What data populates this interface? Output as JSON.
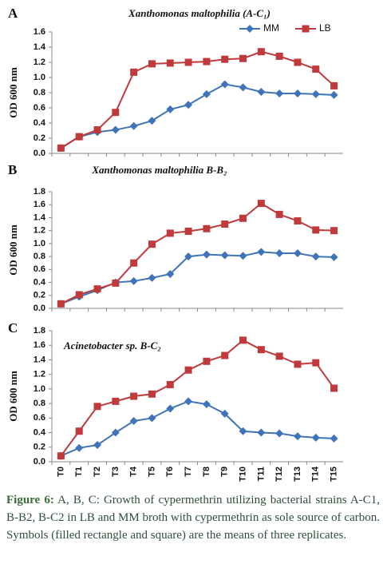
{
  "chart_data": [
    {
      "type": "line",
      "panel": "A",
      "title": "Xanthomonas maltophilia (A-C₁)",
      "y_label": "OD 600 nm",
      "categories": [
        null,
        null,
        null,
        null,
        null,
        null,
        null,
        null,
        null,
        null,
        null,
        null,
        null,
        null,
        null,
        null
      ],
      "series": [
        {
          "name": "MM",
          "color": "#3f74b8",
          "marker": "diamond",
          "values": [
            0.07,
            0.22,
            0.28,
            0.31,
            0.36,
            0.43,
            0.58,
            0.64,
            0.78,
            0.91,
            0.87,
            0.81,
            0.79,
            0.79,
            0.78,
            0.77
          ]
        },
        {
          "name": "LB",
          "color": "#c0393b",
          "marker": "square",
          "values": [
            0.07,
            0.22,
            0.31,
            0.54,
            1.07,
            1.18,
            1.19,
            1.2,
            1.21,
            1.24,
            1.25,
            1.34,
            1.28,
            1.2,
            1.11,
            0.89
          ]
        }
      ],
      "ylim": [
        0,
        1.6
      ],
      "yticks": [
        {
          "value": 0,
          "label": "0.0"
        },
        {
          "value": 0.2,
          "label": "0.2"
        },
        {
          "value": 0.4,
          "label": "0.4"
        },
        {
          "value": 0.6,
          "label": "0.6"
        },
        {
          "value": 0.8,
          "label": "0.8"
        },
        {
          "value": 1,
          "label": "1.0"
        },
        {
          "value": 1.2,
          "label": "1.2"
        },
        {
          "value": 1.4,
          "label": "1.4"
        },
        {
          "value": 1.6,
          "label": "1.6"
        }
      ],
      "legend": "upper right"
    },
    {
      "type": "line",
      "panel": "B",
      "title": "Xanthomonas maltophilia B-B₂",
      "y_label": "OD 600 nm",
      "categories": [
        null,
        null,
        null,
        null,
        null,
        null,
        null,
        null,
        null,
        null,
        null,
        null,
        null,
        null,
        null,
        null
      ],
      "series": [
        {
          "color": "#3f74b8",
          "marker": "diamond",
          "values": [
            0.07,
            0.18,
            0.28,
            0.4,
            0.42,
            0.47,
            0.53,
            0.8,
            0.83,
            0.82,
            0.81,
            0.87,
            0.85,
            0.85,
            0.8,
            0.79
          ]
        },
        {
          "color": "#c0393b",
          "marker": "square",
          "values": [
            0.07,
            0.21,
            0.3,
            0.39,
            0.7,
            0.99,
            1.16,
            1.19,
            1.23,
            1.3,
            1.39,
            1.62,
            1.45,
            1.35,
            1.21,
            1.2
          ]
        }
      ],
      "ylim": [
        0,
        1.8
      ],
      "yticks": [
        {
          "value": 0,
          "label": "0.0"
        },
        {
          "value": 0.2,
          "label": "0.2"
        },
        {
          "value": 0.4,
          "label": "0.4"
        },
        {
          "value": 0.6,
          "label": "0.6"
        },
        {
          "value": 0.8,
          "label": "0.8"
        },
        {
          "value": 1,
          "label": "1.0"
        },
        {
          "value": 1.2,
          "label": "1.2"
        },
        {
          "value": 1.4,
          "label": "1.4"
        },
        {
          "value": 1.6,
          "label": "1.6"
        },
        {
          "value": 1.8,
          "label": "1.8"
        }
      ]
    },
    {
      "type": "line",
      "panel": "C",
      "title": "Acinetobacter sp. B-C₂",
      "y_label": "OD 600 nm",
      "categories": [
        "T0",
        "T1",
        "T2",
        "T3",
        "T4",
        "T5",
        "T6",
        "T7",
        "T8",
        "T9",
        "T10",
        "T11",
        "T12",
        "T13",
        "T14",
        "T15"
      ],
      "series": [
        {
          "color": "#3f74b8",
          "marker": "diamond",
          "values": [
            0.08,
            0.19,
            0.23,
            0.4,
            0.56,
            0.6,
            0.73,
            0.83,
            0.79,
            0.66,
            0.42,
            0.4,
            0.39,
            0.35,
            0.33,
            0.32
          ]
        },
        {
          "color": "#c0393b",
          "marker": "square",
          "values": [
            0.08,
            0.42,
            0.76,
            0.83,
            0.9,
            0.93,
            1.06,
            1.26,
            1.38,
            1.46,
            1.67,
            1.54,
            1.45,
            1.34,
            1.36,
            1.01
          ]
        }
      ],
      "ylim": [
        0,
        1.8
      ],
      "yticks": [
        {
          "value": 0,
          "label": "0.0"
        },
        {
          "value": 0.2,
          "label": "0.2"
        },
        {
          "value": 0.4,
          "label": "0.4"
        },
        {
          "value": 0.6,
          "label": "0.6"
        },
        {
          "value": 0.8,
          "label": "0.8"
        },
        {
          "value": 1,
          "label": "1.0"
        },
        {
          "value": 1.2,
          "label": "1.2"
        },
        {
          "value": 1.4,
          "label": "1.4"
        },
        {
          "value": 1.6,
          "label": "1.6"
        },
        {
          "value": 1.8,
          "label": "1.8"
        }
      ]
    }
  ],
  "figure_label": "Figure 6:",
  "caption": "A, B, C: Growth of cypermethrin utilizing bacterial strains A-C1, B-B2, B-C2 in LB and MM broth with cypermethrin as sole source of carbon. Symbols (filled rectangle and square) are the means of three replicates."
}
